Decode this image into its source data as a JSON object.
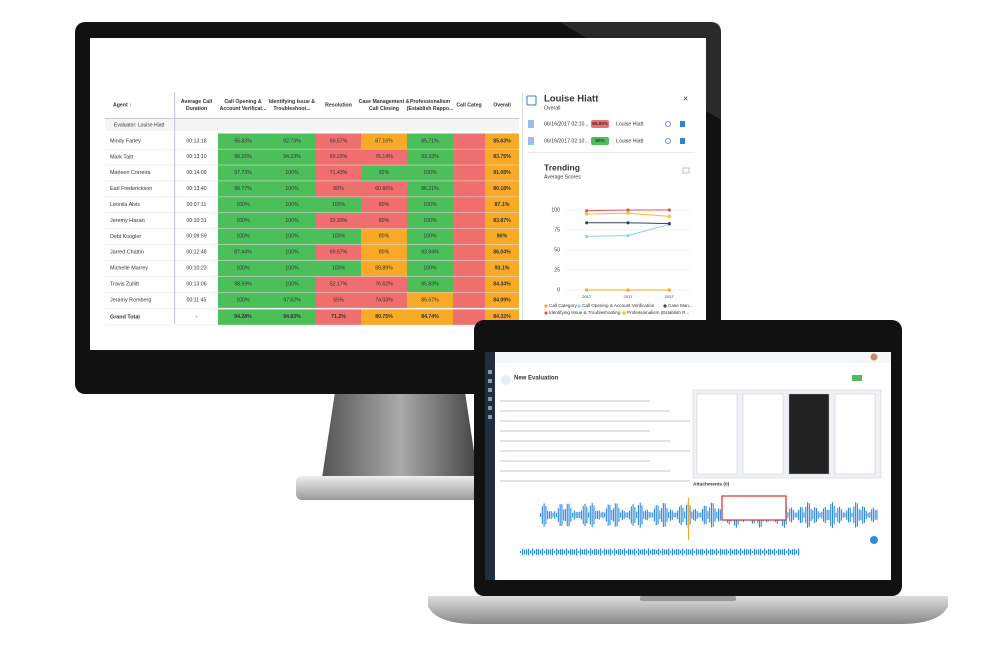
{
  "table": {
    "columns": [
      [
        "Agent ↑"
      ],
      [
        "Average Call",
        "Duration"
      ],
      [
        "Call Opening &",
        "Account Verificat..."
      ],
      [
        "Identifying Issue &",
        "Troubleshoot..."
      ],
      [
        "Resolution"
      ],
      [
        "Case Management &",
        "Call Closing"
      ],
      [
        "Professionalism",
        "(Establish Rappo..."
      ],
      [
        "Call Categ"
      ],
      [
        "Overall"
      ]
    ],
    "group": "Evaluator: Louise Hiatt",
    "rows": [
      {
        "agent": "Mindy Farley",
        "duration": "00:13:18",
        "scores": [
          "95.83%",
          "92.73%",
          "69.57%",
          "87.16%",
          "85.71%"
        ],
        "overall": "85.63%",
        "colors": [
          "green",
          "green",
          "red",
          "orange",
          "green",
          "red",
          "orange"
        ]
      },
      {
        "agent": "Mark Taitt",
        "duration": "00:13:10",
        "scores": [
          "96.15%",
          "94.23%",
          "69.23%",
          "76.14%",
          "93.33%"
        ],
        "overall": "83.75%",
        "colors": [
          "green",
          "green",
          "red",
          "red",
          "green",
          "red",
          "orange"
        ]
      },
      {
        "agent": "Marleen Correira",
        "duration": "00:14:09",
        "scores": [
          "97.73%",
          "100%",
          "71.43%",
          "92%",
          "100%"
        ],
        "overall": "91.08%",
        "colors": [
          "green",
          "green",
          "red",
          "green",
          "green",
          "red",
          "orange"
        ]
      },
      {
        "agent": "Earl Frederickson",
        "duration": "00:13:40",
        "scores": [
          "96.77%",
          "100%",
          "60%",
          "60.66%",
          "86.21%"
        ],
        "overall": "80.18%",
        "colors": [
          "green",
          "green",
          "red",
          "red",
          "green",
          "red",
          "orange"
        ]
      },
      {
        "agent": "Leonila Alvis",
        "duration": "00:07:11",
        "scores": [
          "100%",
          "100%",
          "100%",
          "80%",
          "100%"
        ],
        "overall": "87.1%",
        "colors": [
          "green",
          "green",
          "green",
          "red",
          "green",
          "red",
          "orange"
        ]
      },
      {
        "agent": "Jeremy Hazan",
        "duration": "00:10:31",
        "scores": [
          "100%",
          "100%",
          "33.33%",
          "80%",
          "100%"
        ],
        "overall": "83.87%",
        "colors": [
          "green",
          "green",
          "red",
          "red",
          "green",
          "red",
          "orange"
        ]
      },
      {
        "agent": "Debi Koogler",
        "duration": "00:09:59",
        "scores": [
          "100%",
          "100%",
          "100%",
          "80%",
          "100%"
        ],
        "overall": "90%",
        "colors": [
          "green",
          "green",
          "green",
          "orange",
          "green",
          "red",
          "orange"
        ]
      },
      {
        "agent": "Jarred Chattin",
        "duration": "00:12:48",
        "scores": [
          "87.44%",
          "100%",
          "69.57%",
          "80%",
          "93.94%"
        ],
        "overall": "86.04%",
        "colors": [
          "green",
          "green",
          "red",
          "orange",
          "green",
          "red",
          "orange"
        ]
      },
      {
        "agent": "Michelle Marrey",
        "duration": "00:10:23",
        "scores": [
          "100%",
          "100%",
          "100%",
          "88.89%",
          "100%"
        ],
        "overall": "93.1%",
        "colors": [
          "green",
          "green",
          "green",
          "orange",
          "green",
          "red",
          "orange"
        ]
      },
      {
        "agent": "Travis Zullitt",
        "duration": "00:13:06",
        "scores": [
          "98.59%",
          "100%",
          "52.17%",
          "76.62%",
          "95.83%"
        ],
        "overall": "84.34%",
        "colors": [
          "green",
          "green",
          "red",
          "red",
          "green",
          "red",
          "orange"
        ]
      },
      {
        "agent": "Jeramy Romberg",
        "duration": "00:11:45",
        "scores": [
          "100%",
          "97.62%",
          "55%",
          "74.03%",
          "86.67%"
        ],
        "overall": "84.09%",
        "colors": [
          "green",
          "green",
          "red",
          "red",
          "orange",
          "red",
          "orange"
        ]
      }
    ],
    "total": {
      "agent": "Grand Total",
      "duration": "-",
      "scores": [
        "94.28%",
        "94.83%",
        "71.2%",
        "80.75%",
        "84.74%"
      ],
      "overall": "84.32%",
      "colors": [
        "green",
        "green",
        "red",
        "orange",
        "orange",
        "red",
        "orange"
      ]
    }
  },
  "panel": {
    "title": "Louise Hiatt",
    "subtitle": "Overall",
    "evaluations": [
      {
        "date": "06/16/2017 02:10...",
        "score": "65.83%",
        "color": "red",
        "evaluator": "Louise Hiatt"
      },
      {
        "date": "06/16/2017 02:10...",
        "score": "90%",
        "color": "green",
        "evaluator": "Louise Hiatt"
      }
    ]
  },
  "chart_data": {
    "type": "line",
    "title": "Trending",
    "subtitle": "Average Scores",
    "categories": [
      "2017",
      "2017",
      "2017"
    ],
    "ylim": [
      0,
      125
    ],
    "yticks": [
      0,
      25,
      50,
      75,
      100
    ],
    "grid": true,
    "series": [
      {
        "name": "Call Category",
        "color": "#f5a623",
        "values": [
          0,
          0,
          0
        ]
      },
      {
        "name": "Call Opening & Account Verification",
        "color": "#8fd3f0",
        "values": [
          67,
          68,
          82
        ]
      },
      {
        "name": "Case Man...",
        "color": "#34495e",
        "values": [
          84,
          84,
          83
        ]
      },
      {
        "name": "Identifying Issue & Troubleshooting",
        "color": "#e8534f",
        "values": [
          99,
          100,
          100
        ]
      },
      {
        "name": "Professionalism (Establish R...",
        "color": "#f1c40f",
        "values": [
          95,
          96,
          92
        ]
      }
    ]
  },
  "laptop": {
    "title": "New Evaluation",
    "attachments": "Attachments (0)"
  }
}
